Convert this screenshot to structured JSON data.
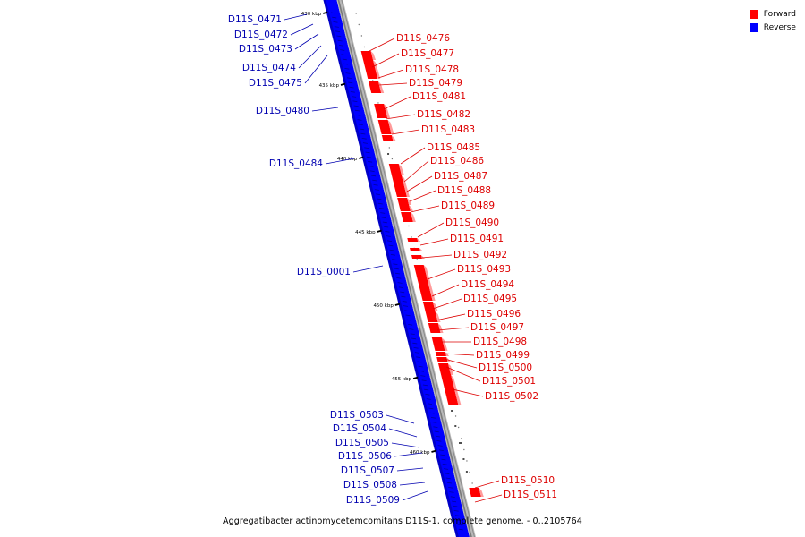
{
  "legend": {
    "items": [
      {
        "label": "Forward",
        "color": "#ff0000"
      },
      {
        "label": "Reverse",
        "color": "#0000ff"
      }
    ]
  },
  "caption": "Aggregatibacter actinomycetemcomitans D11S-1, complete genome. - 0..2105764",
  "colors": {
    "forward": "#ff0000",
    "reverse": "#0000ff",
    "forward_label": "#dd0000",
    "reverse_label": "#0000b0"
  },
  "tick_labels": [
    "430 kbp",
    "435 kbp",
    "440 kbp",
    "445 kbp",
    "450 kbp",
    "455 kbp",
    "460 kbp"
  ],
  "reverse_labels": [
    "D11S_0471",
    "D11S_0472",
    "D11S_0473",
    "D11S_0474",
    "D11S_0475",
    "D11S_0480",
    "D11S_0484",
    "D11S_0001",
    "D11S_0503",
    "D11S_0504",
    "D11S_0505",
    "D11S_0506",
    "D11S_0507",
    "D11S_0508",
    "D11S_0509"
  ],
  "forward_labels": [
    "D11S_0476",
    "D11S_0477",
    "D11S_0478",
    "D11S_0479",
    "D11S_0481",
    "D11S_0482",
    "D11S_0483",
    "D11S_0485",
    "D11S_0486",
    "D11S_0487",
    "D11S_0488",
    "D11S_0489",
    "D11S_0490",
    "D11S_0491",
    "D11S_0492",
    "D11S_0493",
    "D11S_0494",
    "D11S_0495",
    "D11S_0496",
    "D11S_0497",
    "D11S_0498",
    "D11S_0499",
    "D11S_0500",
    "D11S_0501",
    "D11S_0502",
    "D11S_0510",
    "D11S_0511"
  ]
}
